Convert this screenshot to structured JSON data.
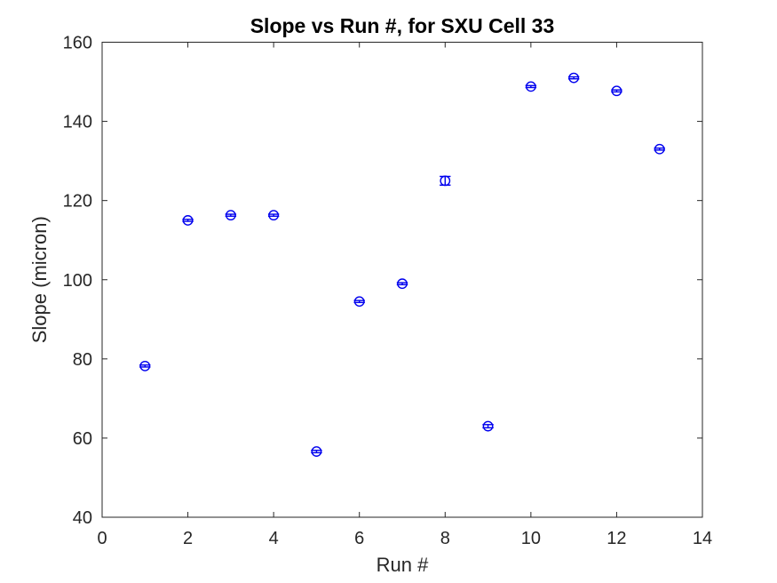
{
  "figure": {
    "background": "#ffffff"
  },
  "chart_data": {
    "type": "scatter",
    "title": "Slope vs Run #, for SXU Cell 33",
    "xlabel": "Run #",
    "ylabel": "Slope (micron)",
    "xlim": [
      0,
      14
    ],
    "ylim": [
      40,
      160
    ],
    "xticks": [
      0,
      2,
      4,
      6,
      8,
      10,
      12,
      14
    ],
    "yticks": [
      40,
      60,
      80,
      100,
      120,
      140,
      160
    ],
    "grid": false,
    "legend": false,
    "marker": "open-circle-with-errorbar",
    "colors": {
      "marker": "#0000EE",
      "axis": "#262626",
      "title": "#000000"
    },
    "series": [
      {
        "name": "Slope",
        "x": [
          1,
          2,
          3,
          4,
          5,
          6,
          7,
          8,
          9,
          10,
          11,
          12,
          13
        ],
        "y": [
          78.2,
          115,
          116.3,
          116.3,
          56.6,
          94.5,
          99,
          125,
          63,
          148.8,
          151,
          147.7,
          133
        ],
        "yerr": [
          0.25,
          0.25,
          0.25,
          0.25,
          0.3,
          0.25,
          0.25,
          1.1,
          0.4,
          0.25,
          0.25,
          0.25,
          0.25
        ]
      }
    ]
  }
}
